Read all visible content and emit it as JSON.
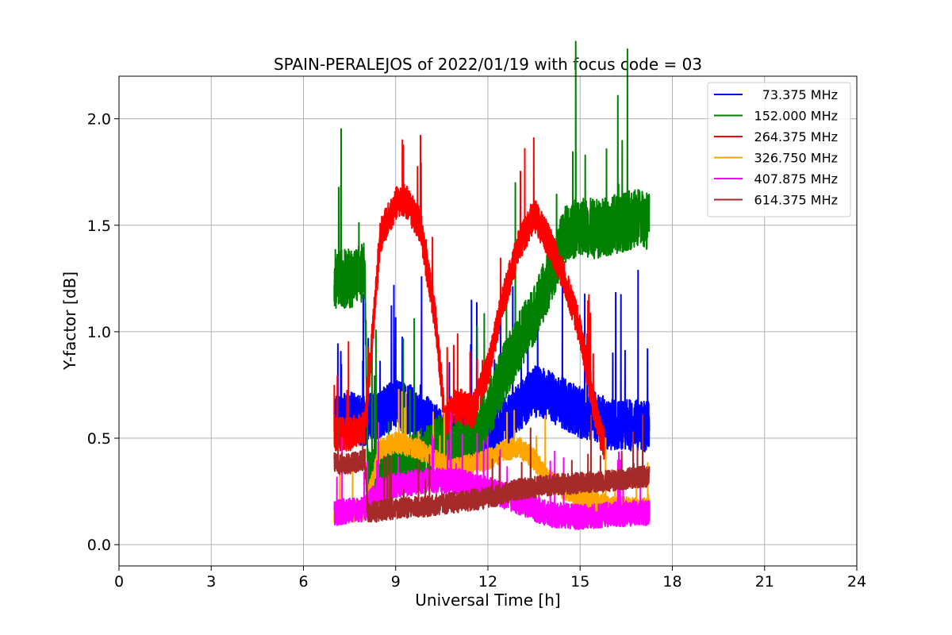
{
  "chart_data": {
    "type": "line",
    "title": "SPAIN-PERALEJOS of 2022/01/19 with focus code = 03",
    "xlabel": "Universal Time [h]",
    "ylabel": "Y-factor [dB]",
    "xlim": [
      0,
      24
    ],
    "ylim": [
      -0.1,
      2.2
    ],
    "x_ticks": [
      0,
      3,
      6,
      9,
      12,
      15,
      18,
      21,
      24
    ],
    "y_ticks": [
      0.0,
      0.5,
      1.0,
      1.5,
      2.0
    ],
    "x_tick_labels": [
      "0",
      "3",
      "6",
      "9",
      "12",
      "15",
      "18",
      "21",
      "24"
    ],
    "y_tick_labels": [
      "0.0",
      "0.5",
      "1.0",
      "1.5",
      "2.0"
    ],
    "grid": true,
    "legend_position": "top-right",
    "series": [
      {
        "name": "73.375 MHz",
        "color": "#0000ff",
        "x": [
          7.0,
          7.5,
          8.0,
          8.5,
          9.0,
          9.5,
          10.0,
          10.5,
          11.0,
          11.5,
          12.0,
          12.5,
          13.0,
          13.5,
          14.0,
          14.5,
          15.0,
          15.5,
          16.0,
          16.5,
          17.0,
          17.25
        ],
        "y": [
          0.58,
          0.6,
          0.58,
          0.62,
          0.66,
          0.63,
          0.58,
          0.52,
          0.48,
          0.5,
          0.52,
          0.56,
          0.64,
          0.72,
          0.7,
          0.66,
          0.62,
          0.6,
          0.56,
          0.56,
          0.56,
          0.55
        ],
        "spread": 0.12
      },
      {
        "name": "152.000 MHz",
        "color": "#008000",
        "x": [
          7.0,
          7.5,
          8.0,
          8.1,
          8.5,
          9.0,
          9.5,
          10.0,
          10.5,
          11.0,
          11.5,
          12.0,
          12.5,
          13.0,
          13.5,
          14.0,
          14.5,
          15.0,
          15.5,
          16.0,
          16.5,
          17.0,
          17.25
        ],
        "y": [
          1.25,
          1.25,
          1.28,
          0.3,
          0.32,
          0.35,
          0.38,
          0.42,
          0.48,
          0.46,
          0.5,
          0.62,
          0.8,
          0.95,
          1.08,
          1.25,
          1.45,
          1.5,
          1.48,
          1.5,
          1.52,
          1.54,
          1.52
        ],
        "spread": 0.14
      },
      {
        "name": "264.375 MHz",
        "color": "#ff0000",
        "x": [
          7.0,
          7.5,
          8.0,
          8.5,
          9.0,
          9.3,
          9.8,
          10.3,
          10.6,
          11.0,
          11.5,
          12.0,
          12.5,
          13.0,
          13.5,
          14.0,
          14.5,
          15.0,
          15.5,
          15.8
        ],
        "y": [
          0.52,
          0.52,
          0.55,
          1.45,
          1.6,
          1.62,
          1.5,
          1.05,
          0.58,
          0.66,
          0.62,
          0.82,
          1.15,
          1.4,
          1.55,
          1.42,
          1.25,
          1.0,
          0.62,
          0.45
        ],
        "spread": 0.08
      },
      {
        "name": "326.750 MHz",
        "color": "#ffa500",
        "x": [
          7.0,
          8.0,
          8.5,
          9.0,
          9.5,
          10.0,
          10.5,
          11.0,
          11.5,
          12.0,
          12.5,
          13.0,
          13.5,
          14.0,
          15.0,
          16.0,
          17.0,
          17.25
        ],
        "y": [
          0.15,
          0.16,
          0.45,
          0.48,
          0.46,
          0.43,
          0.38,
          0.36,
          0.38,
          0.4,
          0.44,
          0.46,
          0.4,
          0.3,
          0.22,
          0.18,
          0.17,
          0.17
        ],
        "spread": 0.05
      },
      {
        "name": "407.875 MHz",
        "color": "#ff00ff",
        "x": [
          7.0,
          8.0,
          8.5,
          9.0,
          10.0,
          11.0,
          12.0,
          13.0,
          14.0,
          15.0,
          16.0,
          17.0,
          17.25
        ],
        "y": [
          0.15,
          0.17,
          0.26,
          0.28,
          0.3,
          0.3,
          0.26,
          0.2,
          0.14,
          0.13,
          0.14,
          0.15,
          0.15
        ],
        "spread": 0.06
      },
      {
        "name": "614.375 MHz",
        "color": "#a52a2a",
        "x": [
          7.0,
          7.5,
          8.0,
          8.1,
          9.0,
          10.0,
          11.0,
          12.0,
          13.0,
          14.0,
          15.0,
          16.0,
          17.0,
          17.25
        ],
        "y": [
          0.38,
          0.38,
          0.4,
          0.15,
          0.17,
          0.18,
          0.2,
          0.22,
          0.26,
          0.28,
          0.29,
          0.3,
          0.32,
          0.32
        ],
        "spread": 0.05
      }
    ]
  }
}
